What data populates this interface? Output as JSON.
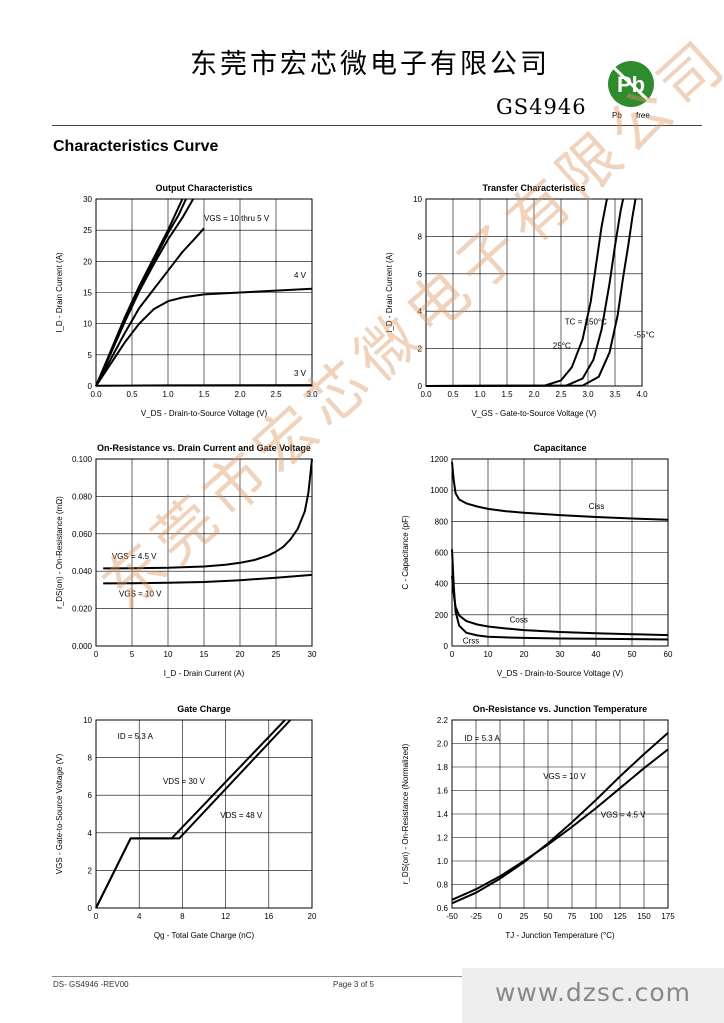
{
  "header": {
    "company": "东莞市宏芯微电子有限公司",
    "part_number": "GS4946",
    "logo_text": "Pb",
    "logo_caption_left": "Pb",
    "logo_caption_right": "free"
  },
  "section_title": "Characteristics Curve",
  "colors": {
    "curve": "#000000",
    "grid": "#000000",
    "watermark": "#e0a070",
    "logo_green": "#2e8b2e"
  },
  "chart_data": [
    {
      "id": "output",
      "type": "line",
      "title": "Output Characteristics",
      "xlabel": "V_DS - Drain-to-Source Voltage (V)",
      "ylabel": "I_D - Drain Current (A)",
      "xlim": [
        0,
        3.0
      ],
      "ylim": [
        0,
        30
      ],
      "xticks": [
        "0.0",
        "0.5",
        "1.0",
        "1.5",
        "2.0",
        "2.5",
        "3.0"
      ],
      "yticks": [
        "0",
        "5",
        "10",
        "15",
        "20",
        "25",
        "30"
      ],
      "grid": true,
      "series": [
        {
          "name": "VGS = 10 thru 5 V",
          "x": [
            0,
            0.2,
            0.4,
            0.6,
            0.8,
            1.0,
            1.1,
            1.2
          ],
          "y": [
            0,
            5.5,
            11,
            16,
            20.5,
            25,
            27.5,
            30
          ]
        },
        {
          "name": "",
          "x": [
            0,
            0.2,
            0.4,
            0.6,
            0.8,
            1.0,
            1.15,
            1.25
          ],
          "y": [
            0,
            5.3,
            10.7,
            15.7,
            20,
            24.5,
            27.5,
            30
          ]
        },
        {
          "name": "",
          "x": [
            0,
            0.2,
            0.4,
            0.6,
            0.8,
            1.0,
            1.2,
            1.35
          ],
          "y": [
            0,
            5.1,
            10.3,
            15.2,
            19.5,
            23.5,
            27,
            30
          ]
        },
        {
          "name": "",
          "x": [
            0,
            0.2,
            0.4,
            0.6,
            0.8,
            1.0,
            1.2,
            1.4,
            1.5
          ],
          "y": [
            0,
            4.2,
            8.5,
            12.5,
            15.5,
            18.5,
            21.5,
            24,
            25.3
          ]
        },
        {
          "name": "4 V",
          "x": [
            0,
            0.2,
            0.4,
            0.6,
            0.8,
            1.0,
            1.2,
            1.5,
            2.0,
            2.5,
            3.0
          ],
          "y": [
            0,
            3.5,
            7,
            10,
            12.3,
            13.6,
            14.2,
            14.7,
            15,
            15.3,
            15.6
          ]
        },
        {
          "name": "3 V",
          "x": [
            0,
            1,
            2,
            3
          ],
          "y": [
            0.05,
            0.1,
            0.12,
            0.15
          ]
        }
      ],
      "annotations": [
        {
          "text": "VGS = 10 thru 5 V",
          "x": 1.5,
          "y": 26.5
        },
        {
          "text": "4 V",
          "x": 2.75,
          "y": 17.3
        },
        {
          "text": "3 V",
          "x": 2.75,
          "y": 1.6
        }
      ]
    },
    {
      "id": "transfer",
      "type": "line",
      "title": "Transfer Characteristics",
      "xlabel": "V_GS - Gate-to-Source Voltage (V)",
      "ylabel": "I_D - Drain Current (A)",
      "xlim": [
        0,
        4.0
      ],
      "ylim": [
        0,
        10
      ],
      "xticks": [
        "0.0",
        "0.5",
        "1.0",
        "1.5",
        "2.0",
        "2.5",
        "3.0",
        "3.5",
        "4.0"
      ],
      "yticks": [
        "0",
        "2",
        "4",
        "6",
        "8",
        "10"
      ],
      "grid": true,
      "series": [
        {
          "name": "TC = 150°C",
          "x": [
            0,
            2.2,
            2.5,
            2.7,
            2.9,
            3.05,
            3.15,
            3.25,
            3.35
          ],
          "y": [
            0,
            0.02,
            0.3,
            1.0,
            2.5,
            4.5,
            6.5,
            8.5,
            10
          ]
        },
        {
          "name": "25°C",
          "x": [
            0,
            2.6,
            2.9,
            3.1,
            3.25,
            3.4,
            3.5,
            3.6,
            3.65
          ],
          "y": [
            0,
            0.02,
            0.4,
            1.4,
            3.0,
            5.5,
            7.5,
            9.3,
            10
          ]
        },
        {
          "name": "-55°C",
          "x": [
            0,
            2.9,
            3.2,
            3.4,
            3.55,
            3.65,
            3.75,
            3.82,
            3.88
          ],
          "y": [
            0,
            0.02,
            0.5,
            1.8,
            3.8,
            5.8,
            7.6,
            9,
            10
          ]
        }
      ],
      "annotations": [
        {
          "text": "TC = 150°C",
          "x": 2.57,
          "y": 3.3
        },
        {
          "text": "25°C",
          "x": 2.35,
          "y": 2.0
        },
        {
          "text": "-55°C",
          "x": 3.85,
          "y": 2.6
        }
      ]
    },
    {
      "id": "onres-id",
      "type": "line",
      "title": "On-Resistance vs. Drain Current and Gate Voltage",
      "xlabel": "I_D - Drain Current (A)",
      "ylabel": "r_DS(on) - On-Resistance (mΩ)",
      "xlim": [
        0,
        30
      ],
      "ylim": [
        0,
        0.1
      ],
      "xticks": [
        "0",
        "5",
        "10",
        "15",
        "20",
        "25",
        "30"
      ],
      "yticks": [
        "0.000",
        "0.020",
        "0.040",
        "0.060",
        "0.080",
        "0.100"
      ],
      "grid": true,
      "series": [
        {
          "name": "VGS = 4.5 V",
          "x": [
            1,
            5,
            10,
            15,
            18,
            20,
            22,
            24,
            25,
            26,
            27,
            28,
            29,
            29.5,
            30
          ],
          "y": [
            0.0415,
            0.0416,
            0.0418,
            0.0425,
            0.0435,
            0.0445,
            0.046,
            0.0485,
            0.0505,
            0.053,
            0.057,
            0.0625,
            0.072,
            0.082,
            0.1
          ]
        },
        {
          "name": "VGS = 10 V",
          "x": [
            1,
            5,
            10,
            15,
            20,
            25,
            30
          ],
          "y": [
            0.0335,
            0.0336,
            0.0338,
            0.0342,
            0.0352,
            0.0365,
            0.038
          ]
        }
      ],
      "annotations": [
        {
          "text": "VGS = 4.5 V",
          "x": 2.2,
          "y": 0.0465
        },
        {
          "text": "VGS = 10 V",
          "x": 3.2,
          "y": 0.0265
        }
      ]
    },
    {
      "id": "capacitance",
      "type": "line",
      "title": "Capacitance",
      "xlabel": "V_DS - Drain-to-Source Voltage (V)",
      "ylabel": "C - Capacitance (pF)",
      "xlim": [
        0,
        60
      ],
      "ylim": [
        0,
        1200
      ],
      "xticks": [
        "0",
        "10",
        "20",
        "30",
        "40",
        "50",
        "60"
      ],
      "yticks": [
        "0",
        "200",
        "400",
        "600",
        "800",
        "1000",
        "1200"
      ],
      "grid": true,
      "series": [
        {
          "name": "Ciss",
          "x": [
            0,
            0.5,
            1,
            2,
            4,
            7,
            10,
            15,
            20,
            30,
            40,
            50,
            60
          ],
          "y": [
            1180,
            1060,
            980,
            940,
            915,
            895,
            880,
            865,
            855,
            840,
            828,
            818,
            810
          ]
        },
        {
          "name": "Coss",
          "x": [
            0,
            0.5,
            1,
            2,
            4,
            7,
            10,
            15,
            20,
            30,
            40,
            50,
            60
          ],
          "y": [
            450,
            330,
            250,
            195,
            160,
            138,
            125,
            112,
            102,
            90,
            82,
            76,
            70
          ]
        },
        {
          "name": "Crss",
          "x": [
            0,
            0.5,
            1,
            2,
            4,
            7,
            10,
            15,
            20,
            30,
            40,
            50,
            60
          ],
          "y": [
            620,
            380,
            220,
            130,
            85,
            68,
            60,
            55,
            52,
            48,
            46,
            44,
            42
          ]
        }
      ],
      "annotations": [
        {
          "text": "Ciss",
          "x": 38,
          "y": 880
        },
        {
          "text": "Coss",
          "x": 16,
          "y": 150
        },
        {
          "text": "Crss",
          "x": 3,
          "y": 15
        }
      ]
    },
    {
      "id": "gate-charge",
      "type": "line",
      "title": "Gate Charge",
      "xlabel": "Qg - Total Gate Charge (nC)",
      "ylabel": "VGS - Gate-to-Source Voltage (V)",
      "xlim": [
        0,
        20
      ],
      "ylim": [
        0,
        10
      ],
      "xticks": [
        "0",
        "4",
        "8",
        "12",
        "16",
        "20"
      ],
      "yticks": [
        "0",
        "2",
        "4",
        "6",
        "8",
        "10"
      ],
      "grid": true,
      "series": [
        {
          "name": "VDS = 30 V",
          "x": [
            0,
            3.2,
            7,
            17.5
          ],
          "y": [
            0,
            3.7,
            3.7,
            10
          ]
        },
        {
          "name": "VDS = 48 V",
          "x": [
            0,
            3.2,
            7.7,
            18
          ],
          "y": [
            0,
            3.7,
            3.7,
            10
          ]
        }
      ],
      "annotations": [
        {
          "text": "ID = 5.3 A",
          "x": 2,
          "y": 9.0
        },
        {
          "text": "VDS = 30 V",
          "x": 6.2,
          "y": 6.6
        },
        {
          "text": "VDS = 48 V",
          "x": 11.5,
          "y": 4.8
        }
      ]
    },
    {
      "id": "onres-tj",
      "type": "line",
      "title": "On-Resistance vs. Junction Temperature",
      "xlabel": "TJ - Junction Temperature (°C)",
      "ylabel": "r_DS(on) - On-Resistance (Normalized)",
      "xlim": [
        -50,
        175
      ],
      "ylim": [
        0.6,
        2.2
      ],
      "xticks": [
        "-50",
        "-25",
        "0",
        "25",
        "50",
        "75",
        "100",
        "125",
        "150",
        "175"
      ],
      "yticks": [
        "0.6",
        "0.8",
        "1.0",
        "1.2",
        "1.4",
        "1.6",
        "1.8",
        "2.0",
        "2.2"
      ],
      "grid": true,
      "series": [
        {
          "name": "VGS = 10 V",
          "x": [
            -50,
            -25,
            0,
            25,
            50,
            75,
            100,
            125,
            150,
            175
          ],
          "y": [
            0.64,
            0.73,
            0.85,
            0.99,
            1.15,
            1.33,
            1.52,
            1.72,
            1.91,
            2.09
          ]
        },
        {
          "name": "VGS = 4.5 V",
          "x": [
            -50,
            -25,
            0,
            25,
            50,
            75,
            100,
            125,
            150,
            175
          ],
          "y": [
            0.67,
            0.76,
            0.87,
            1.0,
            1.14,
            1.29,
            1.45,
            1.62,
            1.79,
            1.95
          ]
        }
      ],
      "annotations": [
        {
          "text": "ID = 5.3 A",
          "x": -37,
          "y": 2.02
        },
        {
          "text": "VGS = 10 V",
          "x": 45,
          "y": 1.7
        },
        {
          "text": "VGS = 4.5 V",
          "x": 105,
          "y": 1.37
        }
      ]
    }
  ],
  "footer": {
    "doc_id": "DS- GS4946 -REV00",
    "page": "Page 3 of 5"
  },
  "watermarks": {
    "url": "www.dzsc.com",
    "company": "东莞市宏芯微电子有限公司"
  }
}
